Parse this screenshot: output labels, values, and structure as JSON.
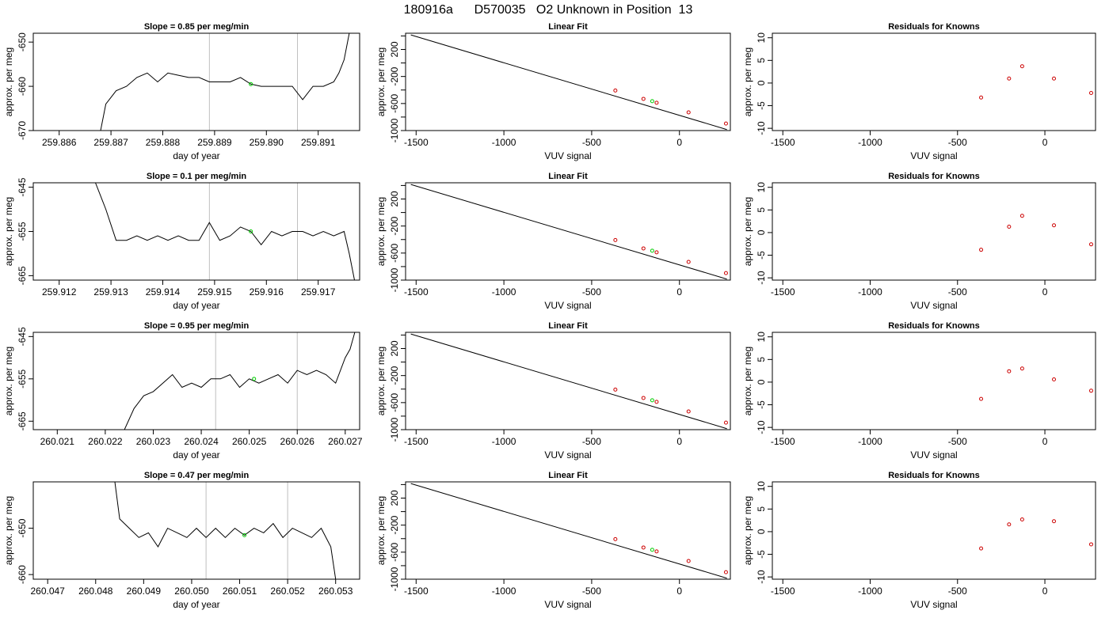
{
  "page_title": "180916a      D570035   O2 Unknown in Position  13",
  "colors": {
    "line": "#000000",
    "frame": "#000000",
    "marker_line": "#bebebe",
    "unknown_point": "#00cc00",
    "known_point": "#cc0000"
  },
  "chart_data": [
    {
      "type": "line",
      "row": 0,
      "col": 0,
      "title": "Slope =  0.85  per meg/min",
      "xlabel": "day of year",
      "ylabel": "approx. per meg",
      "xlim": [
        259.8855,
        259.8918
      ],
      "ylim": [
        -670,
        -648
      ],
      "xticks": [
        259.886,
        259.887,
        259.888,
        259.889,
        259.89,
        259.891
      ],
      "xtick_labels": [
        "259.886",
        "259.887",
        "259.888",
        "259.889",
        "259.890",
        "259.891"
      ],
      "yticks": [
        -670,
        -660,
        -650
      ],
      "ytick_labels": [
        "-670",
        "-660",
        "-650"
      ],
      "vlines": [
        259.8889,
        259.8906
      ],
      "highlight_point": {
        "x": 259.8897,
        "y": -659.5
      },
      "series": [
        {
          "x": [
            259.8868,
            259.8869,
            259.8871,
            259.8873,
            259.8875,
            259.8877,
            259.8879,
            259.8881,
            259.8883,
            259.8885,
            259.8887,
            259.8889,
            259.8891,
            259.8893,
            259.8895,
            259.8897,
            259.8899,
            259.8901,
            259.8903,
            259.8905,
            259.8907,
            259.8909,
            259.8911,
            259.8913,
            259.8914,
            259.8915,
            259.8916
          ],
          "y": [
            -670,
            -664,
            -661,
            -660,
            -658,
            -657,
            -659,
            -657,
            -657.5,
            -658,
            -658,
            -659,
            -659,
            -659,
            -658,
            -659.5,
            -660,
            -660,
            -660,
            -660,
            -663,
            -660,
            -660,
            -659,
            -657,
            -654,
            -648
          ]
        }
      ]
    },
    {
      "type": "line",
      "row": 0,
      "col": 1,
      "title": "Linear Fit",
      "xlabel": "VUV signal",
      "ylabel": "approx. per meg",
      "xlim": [
        -1560,
        290
      ],
      "ylim": [
        -1000,
        440
      ],
      "xticks": [
        -1500,
        -1000,
        -500,
        0
      ],
      "xtick_labels": [
        "-1500",
        "-1000",
        "-500",
        "0"
      ],
      "yticks": [
        -1000,
        -800,
        -600,
        -400,
        -200,
        0,
        200,
        400
      ],
      "ytick_labels": [
        "-1000",
        "-800",
        "-600",
        "-400",
        "-200",
        "0",
        "200",
        "400"
      ],
      "ytick_labelled": [
        true,
        false,
        true,
        false,
        true,
        false,
        true,
        false
      ],
      "line_x": [
        -1530,
        270
      ],
      "line_y": [
        415,
        -985
      ],
      "known_x": [
        -365,
        -205,
        -130,
        52,
        265
      ],
      "known_y": [
        -407,
        -531,
        -589,
        -731,
        -896
      ],
      "unknown_point": {
        "x": -155,
        "y": -565
      }
    },
    {
      "type": "scatter",
      "row": 0,
      "col": 2,
      "title": "Residuals for Knowns",
      "xlabel": "VUV signal",
      "ylabel": "approx. per meg",
      "xlim": [
        -1560,
        290
      ],
      "ylim": [
        -10.5,
        11
      ],
      "xticks": [
        -1500,
        -1000,
        -500,
        0
      ],
      "xtick_labels": [
        "-1500",
        "-1000",
        "-500",
        "0"
      ],
      "yticks": [
        -10,
        -5,
        0,
        5,
        10
      ],
      "ytick_labels": [
        "-10",
        "-5",
        "0",
        "5",
        "10"
      ],
      "x": [
        -365,
        -205,
        -130,
        52,
        265
      ],
      "y": [
        -3.2,
        1.0,
        3.7,
        1.0,
        -2.2
      ]
    },
    {
      "type": "line",
      "row": 1,
      "col": 0,
      "title": "Slope =  0.1  per meg/min",
      "xlabel": "day of year",
      "ylabel": "approx. per meg",
      "xlim": [
        259.9115,
        259.9178
      ],
      "ylim": [
        -666,
        -644
      ],
      "xticks": [
        259.912,
        259.913,
        259.914,
        259.915,
        259.916,
        259.917
      ],
      "xtick_labels": [
        "259.912",
        "259.913",
        "259.914",
        "259.915",
        "259.916",
        "259.917"
      ],
      "yticks": [
        -665,
        -655,
        -645
      ],
      "ytick_labels": [
        "-665",
        "-655",
        "-645"
      ],
      "vlines": [
        259.9149,
        259.9166
      ],
      "highlight_point": {
        "x": 259.9157,
        "y": -655.0
      },
      "series": [
        {
          "x": [
            259.9127,
            259.9129,
            259.9131,
            259.9133,
            259.9135,
            259.9137,
            259.9139,
            259.9141,
            259.9143,
            259.9145,
            259.9147,
            259.9149,
            259.9151,
            259.9153,
            259.9155,
            259.9157,
            259.9159,
            259.9161,
            259.9163,
            259.9165,
            259.9167,
            259.9169,
            259.9171,
            259.9173,
            259.9175,
            259.9176,
            259.9177
          ],
          "y": [
            -644,
            -650,
            -657,
            -657,
            -656,
            -657,
            -656,
            -657,
            -656,
            -657,
            -657,
            -653,
            -657,
            -656,
            -654,
            -655,
            -658,
            -655,
            -656,
            -655,
            -655,
            -656,
            -655,
            -656,
            -655,
            -660,
            -666
          ]
        }
      ]
    },
    {
      "type": "line",
      "row": 1,
      "col": 1,
      "title": "Linear Fit",
      "xlabel": "VUV signal",
      "ylabel": "approx. per meg",
      "xlim": [
        -1560,
        290
      ],
      "ylim": [
        -1000,
        440
      ],
      "xticks": [
        -1500,
        -1000,
        -500,
        0
      ],
      "xtick_labels": [
        "-1500",
        "-1000",
        "-500",
        "0"
      ],
      "yticks": [
        -1000,
        -800,
        -600,
        -400,
        -200,
        0,
        200,
        400
      ],
      "ytick_labels": [
        "-1000",
        "-800",
        "-600",
        "-400",
        "-200",
        "0",
        "200",
        "400"
      ],
      "ytick_labelled": [
        true,
        false,
        true,
        false,
        true,
        false,
        true,
        false
      ],
      "line_x": [
        -1530,
        270
      ],
      "line_y": [
        415,
        -985
      ],
      "known_x": [
        -365,
        -205,
        -130,
        52,
        265
      ],
      "known_y": [
        -407,
        -531,
        -589,
        -731,
        -896
      ],
      "unknown_point": {
        "x": -155,
        "y": -565
      }
    },
    {
      "type": "scatter",
      "row": 1,
      "col": 2,
      "title": "Residuals for Knowns",
      "xlabel": "VUV signal",
      "ylabel": "approx. per meg",
      "xlim": [
        -1560,
        290
      ],
      "ylim": [
        -10.5,
        11
      ],
      "xticks": [
        -1500,
        -1000,
        -500,
        0
      ],
      "xtick_labels": [
        "-1500",
        "-1000",
        "-500",
        "0"
      ],
      "yticks": [
        -10,
        -5,
        0,
        5,
        10
      ],
      "ytick_labels": [
        "-10",
        "-5",
        "0",
        "5",
        "10"
      ],
      "x": [
        -365,
        -205,
        -130,
        52,
        265
      ],
      "y": [
        -3.8,
        1.3,
        3.7,
        1.6,
        -2.6
      ]
    },
    {
      "type": "line",
      "row": 2,
      "col": 0,
      "title": "Slope =  0.95  per meg/min",
      "xlabel": "day of year",
      "ylabel": "approx. per meg",
      "xlim": [
        260.0205,
        260.0273
      ],
      "ylim": [
        -667,
        -644
      ],
      "xticks": [
        260.021,
        260.022,
        260.023,
        260.024,
        260.025,
        260.026,
        260.027
      ],
      "xtick_labels": [
        "260.021",
        "260.022",
        "260.023",
        "260.024",
        "260.025",
        "260.026",
        "260.027"
      ],
      "yticks": [
        -665,
        -655,
        -645
      ],
      "ytick_labels": [
        "-665",
        "-655",
        "-645"
      ],
      "vlines": [
        260.0243,
        260.026
      ],
      "highlight_point": {
        "x": 260.0251,
        "y": -655.0
      },
      "series": [
        {
          "x": [
            260.0224,
            260.0226,
            260.0228,
            260.023,
            260.0232,
            260.0234,
            260.0236,
            260.0238,
            260.024,
            260.0242,
            260.0244,
            260.0246,
            260.0248,
            260.025,
            260.0252,
            260.0254,
            260.0256,
            260.0258,
            260.026,
            260.0262,
            260.0264,
            260.0266,
            260.0268,
            260.027,
            260.0271,
            260.0272
          ],
          "y": [
            -667,
            -662,
            -659,
            -658,
            -656,
            -654,
            -657,
            -656,
            -657,
            -655,
            -655,
            -654,
            -657,
            -655,
            -656,
            -655,
            -654,
            -656,
            -653,
            -654,
            -653,
            -654,
            -656,
            -650,
            -648,
            -644
          ]
        }
      ]
    },
    {
      "type": "line",
      "row": 2,
      "col": 1,
      "title": "Linear Fit",
      "xlabel": "VUV signal",
      "ylabel": "approx. per meg",
      "xlim": [
        -1560,
        290
      ],
      "ylim": [
        -1000,
        440
      ],
      "xticks": [
        -1500,
        -1000,
        -500,
        0
      ],
      "xtick_labels": [
        "-1500",
        "-1000",
        "-500",
        "0"
      ],
      "yticks": [
        -1000,
        -800,
        -600,
        -400,
        -200,
        0,
        200,
        400
      ],
      "ytick_labels": [
        "-1000",
        "-800",
        "-600",
        "-400",
        "-200",
        "0",
        "200",
        "400"
      ],
      "ytick_labelled": [
        true,
        false,
        true,
        false,
        true,
        false,
        true,
        false
      ],
      "line_x": [
        -1530,
        270
      ],
      "line_y": [
        415,
        -985
      ],
      "known_x": [
        -365,
        -205,
        -130,
        52,
        265
      ],
      "known_y": [
        -407,
        -531,
        -589,
        -731,
        -896
      ],
      "unknown_point": {
        "x": -155,
        "y": -565
      }
    },
    {
      "type": "scatter",
      "row": 2,
      "col": 2,
      "title": "Residuals for Knowns",
      "xlabel": "VUV signal",
      "ylabel": "approx. per meg",
      "xlim": [
        -1560,
        290
      ],
      "ylim": [
        -10.5,
        11
      ],
      "xticks": [
        -1500,
        -1000,
        -500,
        0
      ],
      "xtick_labels": [
        "-1500",
        "-1000",
        "-500",
        "0"
      ],
      "yticks": [
        -10,
        -5,
        0,
        5,
        10
      ],
      "ytick_labels": [
        "-10",
        "-5",
        "0",
        "5",
        "10"
      ],
      "x": [
        -365,
        -205,
        -130,
        52,
        265
      ],
      "y": [
        -3.7,
        2.4,
        3.0,
        0.6,
        -1.9
      ]
    },
    {
      "type": "line",
      "row": 3,
      "col": 0,
      "title": "Slope =  0.47  per meg/min",
      "xlabel": "day of year",
      "ylabel": "approx. per meg",
      "xlim": [
        260.0467,
        260.0535
      ],
      "ylim": [
        -661,
        -640
      ],
      "xticks": [
        260.047,
        260.048,
        260.049,
        260.05,
        260.051,
        260.052,
        260.053
      ],
      "xtick_labels": [
        "260.047",
        "260.048",
        "260.049",
        "260.050",
        "260.051",
        "260.052",
        "260.053"
      ],
      "yticks": [
        -660,
        -650
      ],
      "ytick_labels": [
        "-660",
        "-650"
      ],
      "vlines": [
        260.0503,
        260.052
      ],
      "highlight_point": {
        "x": 260.0511,
        "y": -651.5
      },
      "series": [
        {
          "x": [
            260.0484,
            260.0485,
            260.0487,
            260.0489,
            260.0491,
            260.0493,
            260.0495,
            260.0497,
            260.0499,
            260.0501,
            260.0503,
            260.0505,
            260.0507,
            260.0509,
            260.0511,
            260.0513,
            260.0515,
            260.0517,
            260.0519,
            260.0521,
            260.0523,
            260.0525,
            260.0527,
            260.0529,
            260.053
          ],
          "y": [
            -640,
            -648,
            -650,
            -652,
            -651,
            -654,
            -650,
            -651,
            -652,
            -650,
            -652,
            -650,
            -652,
            -650,
            -651.5,
            -650,
            -651,
            -649,
            -652,
            -650,
            -651,
            -652,
            -650,
            -654,
            -661
          ]
        }
      ]
    },
    {
      "type": "line",
      "row": 3,
      "col": 1,
      "title": "Linear Fit",
      "xlabel": "VUV signal",
      "ylabel": "approx. per meg",
      "xlim": [
        -1560,
        290
      ],
      "ylim": [
        -1000,
        440
      ],
      "xticks": [
        -1500,
        -1000,
        -500,
        0
      ],
      "xtick_labels": [
        "-1500",
        "-1000",
        "-500",
        "0"
      ],
      "yticks": [
        -1000,
        -800,
        -600,
        -400,
        -200,
        0,
        200,
        400
      ],
      "ytick_labels": [
        "-1000",
        "-800",
        "-600",
        "-400",
        "-200",
        "0",
        "200",
        "400"
      ],
      "ytick_labelled": [
        true,
        false,
        true,
        false,
        true,
        false,
        true,
        false
      ],
      "line_x": [
        -1530,
        270
      ],
      "line_y": [
        415,
        -985
      ],
      "known_x": [
        -365,
        -205,
        -130,
        52,
        265
      ],
      "known_y": [
        -407,
        -531,
        -589,
        -731,
        -896
      ],
      "unknown_point": {
        "x": -155,
        "y": -565
      }
    },
    {
      "type": "scatter",
      "row": 3,
      "col": 2,
      "title": "Residuals for Knowns",
      "xlabel": "VUV signal",
      "ylabel": "approx. per meg",
      "xlim": [
        -1560,
        290
      ],
      "ylim": [
        -10.5,
        11
      ],
      "xticks": [
        -1500,
        -1000,
        -500,
        0
      ],
      "xtick_labels": [
        "-1500",
        "-1000",
        "-500",
        "0"
      ],
      "yticks": [
        -10,
        -5,
        0,
        5,
        10
      ],
      "ytick_labels": [
        "-10",
        "-5",
        "0",
        "5",
        "10"
      ],
      "x": [
        -365,
        -205,
        -130,
        52,
        265
      ],
      "y": [
        -3.7,
        1.6,
        2.7,
        2.3,
        -2.8
      ]
    }
  ]
}
